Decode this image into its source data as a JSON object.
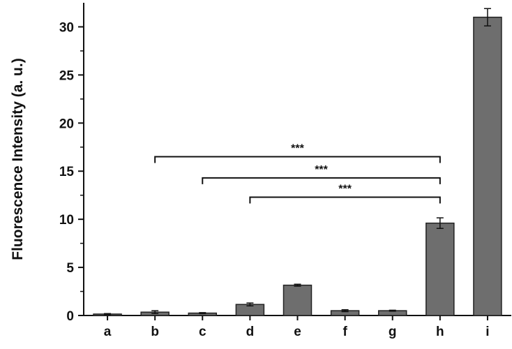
{
  "chart_data": {
    "type": "bar",
    "title": "",
    "xlabel": "",
    "ylabel": "Fluorescence Intensity (a. u.)",
    "ylim": [
      0,
      32.5
    ],
    "yticks": [
      0,
      5,
      10,
      15,
      20,
      25,
      30
    ],
    "categories": [
      "a",
      "b",
      "c",
      "d",
      "e",
      "f",
      "g",
      "h",
      "i"
    ],
    "values": [
      0.15,
      0.35,
      0.25,
      1.15,
      3.15,
      0.5,
      0.5,
      9.6,
      31.0
    ],
    "errors": [
      0.05,
      0.15,
      0.05,
      0.15,
      0.1,
      0.1,
      0.05,
      0.55,
      0.9
    ],
    "bar_color": "#6e6e6e",
    "grid": false,
    "significance": [
      {
        "from": "b",
        "to": "h",
        "label": "***",
        "y": 16.5
      },
      {
        "from": "c",
        "to": "h",
        "label": "***",
        "y": 14.3
      },
      {
        "from": "d",
        "to": "h",
        "label": "***",
        "y": 12.3
      }
    ]
  }
}
